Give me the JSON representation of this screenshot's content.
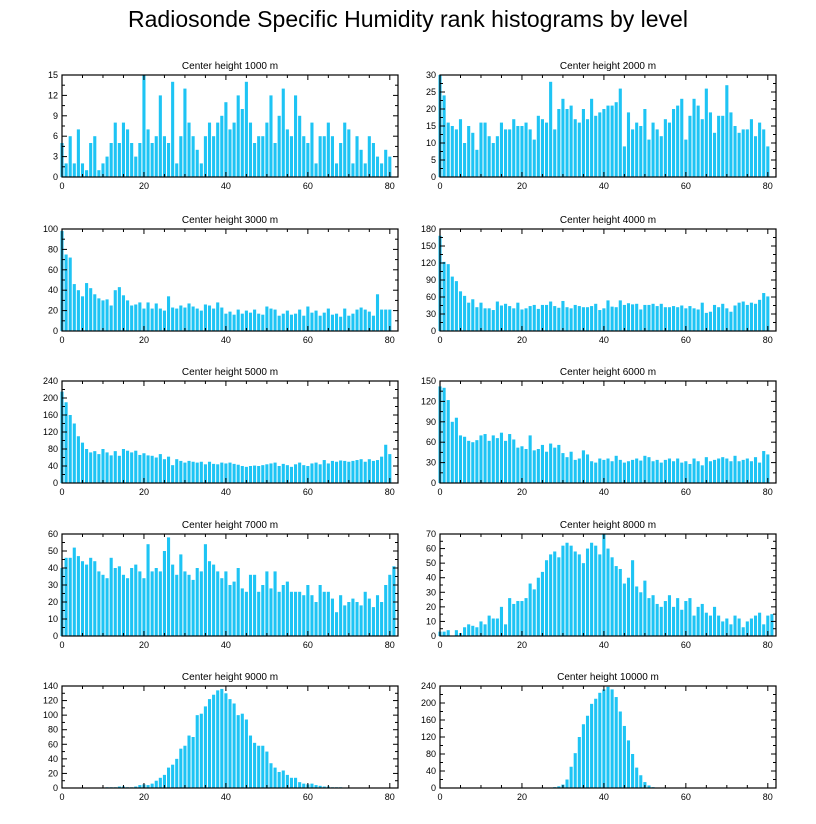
{
  "title": "Radiosonde Specific Humidity rank histograms by level",
  "colors": {
    "bar": "#1ec4f4",
    "axis": "#000000"
  },
  "chart_data": [
    {
      "type": "bar",
      "title": "Center height 1000 m",
      "xlim": [
        0,
        82
      ],
      "ylim": [
        0,
        15
      ],
      "xticks": [
        0,
        20,
        40,
        60,
        80
      ],
      "yticks": [
        0,
        3,
        6,
        9,
        12,
        15
      ],
      "values": [
        5,
        2,
        6,
        2,
        7,
        2,
        1,
        5,
        6,
        1,
        2,
        3,
        5,
        8,
        5,
        8,
        7,
        5,
        3,
        5,
        15,
        7,
        5,
        6,
        12,
        6,
        5,
        14,
        2,
        6,
        13,
        8,
        6,
        4,
        2,
        6,
        8,
        6,
        8,
        9,
        11,
        7,
        8,
        12,
        10,
        14,
        8,
        5,
        6,
        6,
        8,
        12,
        5,
        9,
        13,
        7,
        6,
        12,
        9,
        6,
        5,
        8,
        2,
        6,
        6,
        8,
        6,
        2,
        5,
        8,
        7,
        2,
        6,
        4,
        2,
        6,
        5,
        3,
        2,
        4,
        3
      ]
    },
    {
      "type": "bar",
      "title": "Center height 2000 m",
      "xlim": [
        0,
        82
      ],
      "ylim": [
        0,
        30
      ],
      "xticks": [
        0,
        20,
        40,
        60,
        80
      ],
      "yticks": [
        0,
        5,
        10,
        15,
        20,
        25,
        30
      ],
      "values": [
        30,
        24,
        16,
        15,
        14,
        17,
        10,
        15,
        13,
        8,
        16,
        16,
        12,
        10,
        12,
        16,
        14,
        14,
        17,
        15,
        15,
        16,
        14,
        11,
        18,
        17,
        16,
        28,
        14,
        20,
        23,
        20,
        21,
        17,
        16,
        20,
        17,
        23,
        18,
        19,
        20,
        21,
        21,
        22,
        26,
        9,
        19,
        14,
        16,
        15,
        20,
        11,
        16,
        14,
        12,
        17,
        16,
        20,
        21,
        23,
        11,
        18,
        23,
        21,
        17,
        26,
        19,
        13,
        18,
        18,
        27,
        19,
        15,
        13,
        14,
        14,
        17,
        12,
        16,
        14,
        9
      ]
    },
    {
      "type": "bar",
      "title": "Center height 3000 m",
      "xlim": [
        0,
        82
      ],
      "ylim": [
        0,
        100
      ],
      "xticks": [
        0,
        20,
        40,
        60,
        80
      ],
      "yticks": [
        0,
        20,
        40,
        60,
        80,
        100
      ],
      "values": [
        98,
        75,
        72,
        46,
        40,
        34,
        47,
        42,
        36,
        32,
        30,
        31,
        25,
        40,
        43,
        35,
        30,
        25,
        26,
        28,
        22,
        28,
        22,
        27,
        22,
        20,
        34,
        23,
        22,
        25,
        23,
        27,
        24,
        22,
        20,
        26,
        25,
        22,
        28,
        23,
        17,
        19,
        16,
        21,
        17,
        20,
        18,
        21,
        17,
        16,
        24,
        22,
        21,
        15,
        17,
        20,
        16,
        17,
        21,
        15,
        24,
        18,
        20,
        15,
        18,
        22,
        16,
        17,
        14,
        22,
        15,
        17,
        21,
        23,
        21,
        19,
        15,
        36,
        21,
        21,
        21
      ]
    },
    {
      "type": "bar",
      "title": "Center height 4000 m",
      "xlim": [
        0,
        82
      ],
      "ylim": [
        0,
        180
      ],
      "xticks": [
        0,
        20,
        40,
        60,
        80
      ],
      "yticks": [
        0,
        30,
        60,
        90,
        120,
        150,
        180
      ],
      "values": [
        168,
        122,
        118,
        96,
        88,
        70,
        62,
        50,
        56,
        42,
        50,
        40,
        40,
        37,
        52,
        45,
        48,
        44,
        40,
        50,
        38,
        40,
        44,
        46,
        39,
        46,
        46,
        52,
        44,
        41,
        53,
        42,
        40,
        46,
        44,
        42,
        42,
        44,
        48,
        37,
        40,
        54,
        43,
        42,
        54,
        46,
        49,
        47,
        48,
        38,
        46,
        46,
        48,
        44,
        48,
        42,
        42,
        44,
        42,
        45,
        40,
        44,
        40,
        38,
        50,
        32,
        34,
        46,
        42,
        48,
        40,
        34,
        45,
        50,
        52,
        46,
        50,
        48,
        55,
        67,
        61
      ]
    },
    {
      "type": "bar",
      "title": "Center height 5000 m",
      "xlim": [
        0,
        82
      ],
      "ylim": [
        0,
        240
      ],
      "xticks": [
        0,
        20,
        40,
        60,
        80
      ],
      "yticks": [
        0,
        40,
        80,
        120,
        160,
        200,
        240
      ],
      "values": [
        215,
        190,
        160,
        140,
        110,
        95,
        80,
        72,
        75,
        68,
        80,
        72,
        65,
        75,
        64,
        80,
        76,
        72,
        76,
        66,
        70,
        65,
        64,
        60,
        68,
        56,
        62,
        42,
        56,
        52,
        48,
        52,
        50,
        48,
        50,
        44,
        50,
        45,
        44,
        48,
        46,
        48,
        45,
        43,
        40,
        38,
        40,
        41,
        40,
        42,
        44,
        46,
        48,
        40,
        45,
        42,
        38,
        44,
        48,
        42,
        40,
        46,
        48,
        44,
        54,
        46,
        52,
        50,
        53,
        52,
        50,
        52,
        54,
        56,
        50,
        56,
        52,
        54,
        62,
        90,
        68
      ]
    },
    {
      "type": "bar",
      "title": "Center height 6000 m",
      "xlim": [
        0,
        82
      ],
      "ylim": [
        0,
        150
      ],
      "xticks": [
        0,
        20,
        40,
        60,
        80
      ],
      "yticks": [
        0,
        30,
        60,
        90,
        120,
        150
      ],
      "values": [
        142,
        140,
        122,
        90,
        96,
        70,
        68,
        62,
        60,
        63,
        70,
        72,
        62,
        70,
        66,
        74,
        62,
        72,
        64,
        52,
        54,
        50,
        70,
        48,
        50,
        56,
        46,
        58,
        52,
        56,
        44,
        38,
        46,
        34,
        36,
        48,
        42,
        32,
        30,
        36,
        34,
        36,
        32,
        40,
        34,
        30,
        32,
        34,
        36,
        33,
        40,
        38,
        32,
        34,
        30,
        34,
        36,
        32,
        36,
        30,
        32,
        28,
        36,
        32,
        26,
        38,
        32,
        34,
        36,
        38,
        36,
        32,
        40,
        32,
        34,
        36,
        32,
        38,
        30,
        47,
        42
      ]
    },
    {
      "type": "bar",
      "title": "Center height 7000 m",
      "xlim": [
        0,
        82
      ],
      "ylim": [
        0,
        60
      ],
      "xticks": [
        0,
        20,
        40,
        60,
        80
      ],
      "yticks": [
        0,
        10,
        20,
        30,
        40,
        50,
        60
      ],
      "values": [
        40,
        46,
        46,
        52,
        47,
        44,
        42,
        46,
        44,
        38,
        36,
        34,
        46,
        40,
        41,
        36,
        34,
        40,
        42,
        38,
        34,
        54,
        38,
        40,
        38,
        50,
        58,
        42,
        36,
        48,
        38,
        36,
        33,
        40,
        38,
        54,
        44,
        42,
        38,
        34,
        38,
        30,
        32,
        40,
        28,
        26,
        36,
        36,
        26,
        30,
        38,
        28,
        38,
        26,
        30,
        32,
        26,
        26,
        26,
        24,
        30,
        24,
        20,
        30,
        26,
        26,
        22,
        14,
        24,
        18,
        20,
        22,
        20,
        18,
        26,
        22,
        17,
        24,
        20,
        30,
        36,
        41
      ]
    },
    {
      "type": "bar",
      "title": "Center height 8000 m",
      "xlim": [
        0,
        82
      ],
      "ylim": [
        0,
        70
      ],
      "xticks": [
        0,
        20,
        40,
        60,
        80
      ],
      "yticks": [
        0,
        10,
        20,
        30,
        40,
        50,
        60,
        70
      ],
      "values": [
        3,
        3,
        4,
        0,
        4,
        2,
        6,
        8,
        7,
        6,
        10,
        8,
        14,
        12,
        12,
        20,
        8,
        26,
        22,
        24,
        24,
        26,
        36,
        32,
        40,
        44,
        52,
        56,
        58,
        54,
        62,
        64,
        62,
        58,
        56,
        50,
        60,
        64,
        62,
        56,
        70,
        60,
        54,
        48,
        46,
        36,
        40,
        52,
        34,
        30,
        38,
        26,
        28,
        22,
        20,
        24,
        28,
        20,
        26,
        18,
        24,
        26,
        14,
        20,
        22,
        16,
        14,
        20,
        14,
        10,
        12,
        8,
        14,
        12,
        6,
        10,
        12,
        14,
        16,
        8,
        14,
        15
      ]
    },
    {
      "type": "bar",
      "title": "Center height 9000 m",
      "xlim": [
        0,
        82
      ],
      "ylim": [
        0,
        140
      ],
      "xticks": [
        0,
        20,
        40,
        60,
        80
      ],
      "yticks": [
        0,
        20,
        40,
        60,
        80,
        100,
        120,
        140
      ],
      "values": [
        0,
        0,
        0,
        0,
        0,
        0,
        0,
        0,
        0,
        0,
        0,
        1,
        1,
        1,
        2,
        2,
        1,
        1,
        2,
        4,
        5,
        4,
        6,
        10,
        14,
        18,
        28,
        32,
        40,
        54,
        58,
        72,
        70,
        100,
        102,
        112,
        122,
        128,
        134,
        136,
        130,
        122,
        116,
        100,
        102,
        94,
        72,
        62,
        58,
        58,
        50,
        34,
        28,
        22,
        24,
        18,
        14,
        14,
        8,
        6,
        5,
        6,
        4,
        3,
        2,
        2,
        1,
        1,
        1,
        0,
        0,
        0,
        0,
        0,
        0,
        0,
        0,
        0,
        0,
        0,
        0,
        0
      ]
    },
    {
      "type": "bar",
      "title": "Center height 10000 m",
      "xlim": [
        0,
        82
      ],
      "ylim": [
        0,
        240
      ],
      "xticks": [
        0,
        20,
        40,
        60,
        80
      ],
      "yticks": [
        0,
        40,
        80,
        120,
        160,
        200,
        240
      ],
      "values": [
        0,
        0,
        0,
        0,
        0,
        0,
        0,
        0,
        0,
        0,
        0,
        0,
        0,
        0,
        0,
        0,
        0,
        0,
        0,
        0,
        0,
        0,
        0,
        0,
        0,
        0,
        0,
        1,
        2,
        4,
        8,
        20,
        50,
        82,
        120,
        150,
        170,
        198,
        210,
        224,
        232,
        238,
        232,
        214,
        180,
        146,
        112,
        80,
        48,
        30,
        14,
        6,
        2,
        1,
        0,
        0,
        0,
        0,
        0,
        0,
        0,
        0,
        0,
        0,
        0,
        0,
        0,
        0,
        0,
        0,
        0,
        0,
        0,
        0,
        0,
        0,
        0,
        0,
        0,
        0,
        0,
        0
      ]
    }
  ]
}
